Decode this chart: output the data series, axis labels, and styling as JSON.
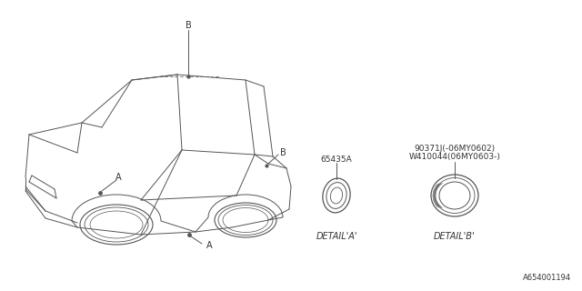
{
  "bg_color": "#ffffff",
  "line_color": "#555555",
  "text_color": "#333333",
  "part_number_a": "65435A",
  "part_number_b1": "90371J(-06MY0602)",
  "part_number_b2": "W410044(06MY0603-)",
  "detail_a_label": "DETAIL'A'",
  "detail_b_label": "DETAIL'B'",
  "footer_code": "A654001194",
  "label_a": "A",
  "label_b": "B",
  "fig_width": 6.4,
  "fig_height": 3.2,
  "dpi": 100
}
